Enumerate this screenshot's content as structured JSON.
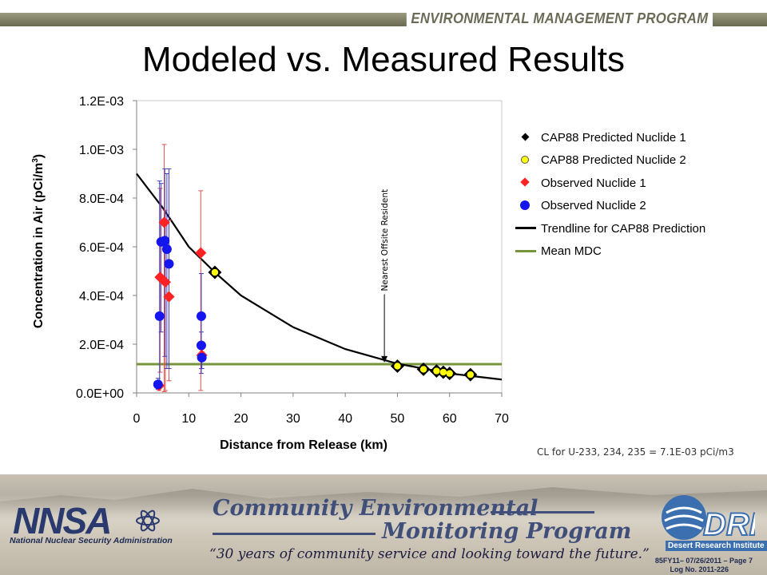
{
  "header": {
    "banner": "ENVIRONMENTAL MANAGEMENT PROGRAM",
    "title": "Modeled vs. Measured Results"
  },
  "chart_data": {
    "type": "scatter",
    "title": "",
    "xlabel": "Distance from Release (km)",
    "ylabel_main": "Concentration in Air (pCi/m",
    "ylabel_sup": "3",
    "ylabel_end": ")",
    "xlim": [
      0,
      70
    ],
    "ylim": [
      0,
      0.0012
    ],
    "xticks": [
      "0",
      "10",
      "20",
      "30",
      "40",
      "50",
      "60",
      "70"
    ],
    "xtick_values": [
      0,
      10,
      20,
      30,
      40,
      50,
      60,
      70
    ],
    "yticks": [
      "0.0E+00",
      "2.0E-04",
      "4.0E-04",
      "6.0E-04",
      "8.0E-04",
      "1.0E-03",
      "1.2E-03"
    ],
    "ytick_values": [
      0,
      0.0002,
      0.0004,
      0.0006,
      0.0008,
      0.001,
      0.0012
    ],
    "legend_position": "right",
    "series": [
      {
        "name": "CAP88 Predicted Nuclide 1",
        "type": "scatter",
        "marker": "diamond",
        "color": "#000000",
        "points": [
          [
            15,
            0.000495
          ],
          [
            50,
            0.00011
          ],
          [
            55,
            9.7e-05
          ],
          [
            57.5,
            9e-05
          ],
          [
            58.8,
            8.5e-05
          ],
          [
            60,
            8e-05
          ],
          [
            64,
            7.5e-05
          ]
        ]
      },
      {
        "name": "CAP88 Predicted Nuclide 2",
        "type": "scatter",
        "marker": "circle",
        "color": "#ffff00",
        "points": [
          [
            15,
            0.000495
          ],
          [
            50,
            0.00011
          ],
          [
            55,
            9.7e-05
          ],
          [
            57.5,
            9e-05
          ],
          [
            58.8,
            8.5e-05
          ],
          [
            60,
            8e-05
          ],
          [
            64,
            7.5e-05
          ]
        ]
      },
      {
        "name": "Observed Nuclide 1",
        "type": "scatter",
        "marker": "diamond",
        "color": "#ff2222",
        "error_color": "#e05050",
        "points": [
          [
            4.3,
            3e-05
          ],
          [
            4.5,
            0.000475
          ],
          [
            5.3,
            0.0007
          ],
          [
            5.5,
            0.000455
          ],
          [
            6.2,
            0.000395
          ],
          [
            12.3,
            0.000575
          ],
          [
            12.5,
            0.000155
          ]
        ],
        "errors": [
          [
            1e-05,
            4e-05
          ],
          [
            8.5e-05,
            0.00084
          ],
          [
            5e-06,
            0.00102
          ],
          [
            1e-05,
            0.00075
          ],
          [
            5e-05,
            0.00071
          ],
          [
            1e-05,
            0.00083
          ],
          [
            0.0001,
            0.00021
          ]
        ]
      },
      {
        "name": "Observed Nuclide 2",
        "type": "scatter",
        "marker": "circle",
        "color": "#1515f0",
        "error_color": "#4040c0",
        "points": [
          [
            4.1,
            3.5e-05
          ],
          [
            4.4,
            0.000315
          ],
          [
            4.7,
            0.00062
          ],
          [
            5.4,
            0.000625
          ],
          [
            5.8,
            0.00059
          ],
          [
            6.2,
            0.00053
          ],
          [
            12.4,
            0.000315
          ],
          [
            12.4,
            0.000195
          ],
          [
            12.5,
            0.000145
          ]
        ],
        "errors": [
          [
            1.5e-05,
            6e-05
          ],
          [
            2e-05,
            0.00087
          ],
          [
            0.00025,
            0.00086
          ],
          [
            0.00015,
            0.00092
          ],
          [
            0.0001,
            0.0009
          ],
          [
            0.0001,
            0.00092
          ],
          [
            8e-05,
            0.00049
          ],
          [
            0.0001,
            0.00025
          ],
          [
            0.0001,
            0.0002
          ]
        ]
      },
      {
        "name": "Trendline for CAP88 Prediction",
        "type": "line",
        "color": "#000000",
        "points": [
          [
            0,
            0.0009
          ],
          [
            5,
            0.00076
          ],
          [
            10,
            0.0006
          ],
          [
            15,
            0.000495
          ],
          [
            20,
            0.0004
          ],
          [
            30,
            0.00027
          ],
          [
            40,
            0.00018
          ],
          [
            50,
            0.00012
          ],
          [
            60,
            8e-05
          ],
          [
            70,
            5.5e-05
          ]
        ]
      },
      {
        "name": "Mean MDC",
        "type": "line",
        "color": "#77933c",
        "points": [
          [
            0,
            0.000118
          ],
          [
            70,
            0.000118
          ]
        ]
      }
    ],
    "annotation": {
      "text": "Nearest Offsite Resident",
      "x": 47.5,
      "y_tip": 0.000125,
      "y_top": 0.000405
    }
  },
  "note": "CL for U-233, 234, 235 = 7.1E-03 pCi/m3",
  "footer": {
    "nnsa_wordmark": "NNSA",
    "nnsa_subtitle": "National Nuclear Security Administration",
    "program_line1": "Community Environmental",
    "program_line2": "Monitoring Program",
    "tagline": "“30 years of community service and looking toward the future.”",
    "dri_wordmark": "DRI",
    "dri_subtitle": "Desert Research Institute",
    "doc_ref": "85FY11– 07/26/2011 – Page 7",
    "log_no": "Log No. 2011-226"
  }
}
